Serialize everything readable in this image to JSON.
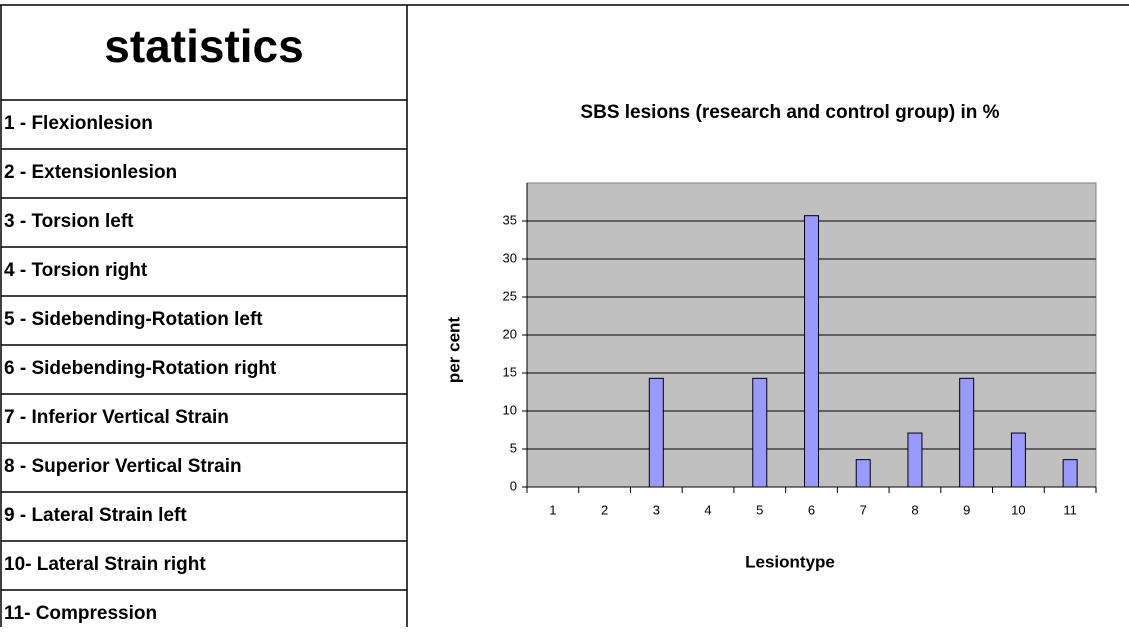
{
  "legend_table": {
    "title": "statistics",
    "items": [
      "1 - Flexionlesion",
      "2 - Extensionlesion",
      "3 - Torsion left",
      "4 - Torsion right",
      "5 - Sidebending-Rotation left",
      "6 -  Sidebending-Rotation right",
      "7 - Inferior Vertical Strain",
      "8 - Superior Vertical Strain",
      "9 -  Lateral Strain left",
      "10-  Lateral Strain right",
      "11-  Compression"
    ]
  },
  "chart_data": {
    "type": "bar",
    "title": "SBS lesions (research and control group) in %",
    "x_label": "Lesiontype",
    "y_label": "per cent",
    "categories": [
      "1",
      "2",
      "3",
      "4",
      "5",
      "6",
      "7",
      "8",
      "9",
      "10",
      "11"
    ],
    "values": [
      0,
      0,
      14.3,
      0,
      14.3,
      35.7,
      3.6,
      7.1,
      14.3,
      7.1,
      3.6
    ],
    "color": "#9999ff",
    "ylim": [
      0,
      40
    ],
    "yticks": [
      0,
      5,
      10,
      15,
      20,
      25,
      30,
      35
    ],
    "grid": true
  }
}
